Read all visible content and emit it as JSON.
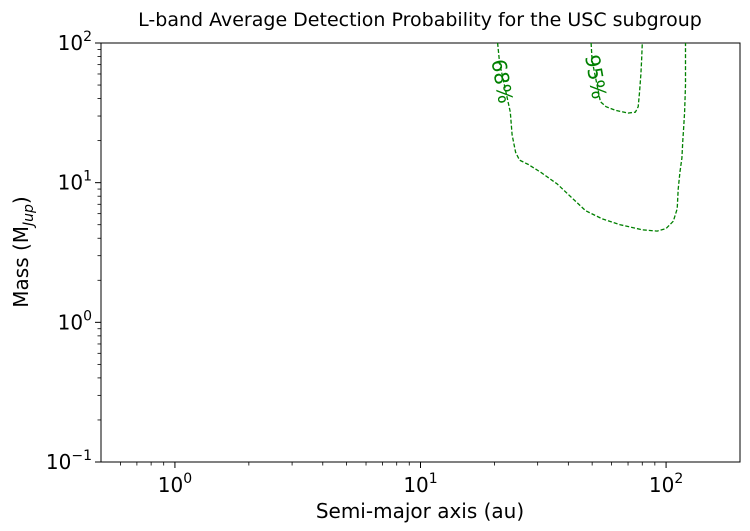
{
  "chart_data": {
    "type": "line",
    "title": "L-band Average Detection Probability for the USC subgroup",
    "xlabel": "Semi-major axis (au)",
    "ylabel_main": "Mass (M",
    "ylabel_sub": "Jup",
    "ylabel_close": ")",
    "xscale": "log",
    "yscale": "log",
    "xlim": [
      0.5,
      200
    ],
    "ylim": [
      0.1,
      100
    ],
    "x_ticks": [
      {
        "value": 1,
        "base": "10",
        "exp": "0"
      },
      {
        "value": 10,
        "base": "10",
        "exp": "1"
      },
      {
        "value": 100,
        "base": "10",
        "exp": "2"
      }
    ],
    "y_ticks": [
      {
        "value": 0.1,
        "base": "10",
        "exp": "−1"
      },
      {
        "value": 1,
        "base": "10",
        "exp": "0"
      },
      {
        "value": 10,
        "base": "10",
        "exp": "1"
      },
      {
        "value": 100,
        "base": "10",
        "exp": "2"
      }
    ],
    "grid": false,
    "line_color": "#008000",
    "series": [
      {
        "name": "68%",
        "label": "68%",
        "label_at": [
          21.2,
          53
        ],
        "label_rotation": 80,
        "points": [
          [
            20.6,
            100
          ],
          [
            21.0,
            72
          ],
          [
            23.2,
            32
          ],
          [
            23.6,
            22
          ],
          [
            24.4,
            16.5
          ],
          [
            25.3,
            14.5
          ],
          [
            27.5,
            13.5
          ],
          [
            31,
            11.8
          ],
          [
            36,
            9.8
          ],
          [
            41,
            7.9
          ],
          [
            47,
            6.3
          ],
          [
            55,
            5.5
          ],
          [
            65,
            5.0
          ],
          [
            80,
            4.6
          ],
          [
            92,
            4.5
          ],
          [
            100,
            4.7
          ],
          [
            107,
            5.3
          ],
          [
            111,
            6.5
          ],
          [
            112,
            9
          ],
          [
            114,
            12
          ],
          [
            116,
            15
          ],
          [
            117,
            20
          ],
          [
            118,
            25
          ],
          [
            119,
            32
          ],
          [
            120,
            50
          ],
          [
            120,
            70
          ],
          [
            120,
            100
          ]
        ]
      },
      {
        "name": "95%",
        "label": "95%",
        "label_at": [
          51,
          57
        ],
        "label_rotation": 80,
        "points": [
          [
            49.5,
            100
          ],
          [
            50,
            75
          ],
          [
            54,
            38
          ],
          [
            57,
            35
          ],
          [
            62,
            33
          ],
          [
            70,
            31.5
          ],
          [
            75,
            32
          ],
          [
            77,
            35
          ],
          [
            78,
            45
          ],
          [
            79,
            60
          ],
          [
            79.5,
            75
          ],
          [
            80,
            100
          ]
        ]
      }
    ]
  }
}
